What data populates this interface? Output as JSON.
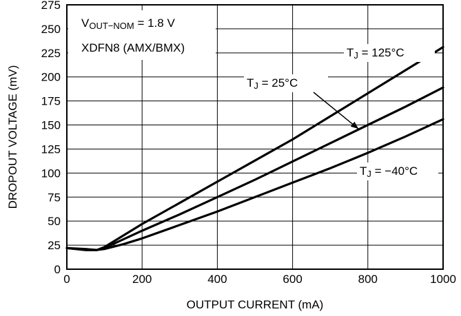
{
  "chart_data": {
    "type": "line",
    "title": "",
    "xlabel": "OUTPUT CURRENT (mA)",
    "ylabel": "DROPOUT VOLTAGE (mV)",
    "xlim": [
      0,
      1000
    ],
    "ylim": [
      0,
      275
    ],
    "grid": true,
    "x_ticks": [
      0,
      200,
      400,
      600,
      800,
      1000
    ],
    "y_ticks": [
      0,
      25,
      50,
      75,
      100,
      125,
      150,
      175,
      200,
      225,
      250,
      275
    ],
    "condition_box": {
      "line1_main": "V",
      "line1_sub": "OUT−NOM",
      "line1_rest": " = 1.8 V",
      "line2": "XDFN8 (AMX/BMX)"
    },
    "series": [
      {
        "label_main": "T",
        "label_sub": "J",
        "label_rest": " = 125°C",
        "x": [
          0,
          50,
          80,
          100,
          150,
          200,
          300,
          400,
          500,
          600,
          700,
          800,
          900,
          1000
        ],
        "y": [
          22,
          20,
          20,
          23,
          35,
          47,
          69,
          91,
          113,
          135,
          159,
          183,
          207,
          231
        ]
      },
      {
        "label_main": "T",
        "label_sub": "J",
        "label_rest": " = 25°C",
        "x": [
          0,
          50,
          80,
          100,
          150,
          200,
          300,
          400,
          500,
          600,
          700,
          800,
          900,
          1000
        ],
        "y": [
          22,
          20,
          20,
          22,
          31,
          40,
          57,
          75,
          93,
          112,
          131,
          150,
          169,
          189
        ]
      },
      {
        "label_main": "T",
        "label_sub": "J",
        "label_rest": " = −40°C",
        "x": [
          0,
          50,
          80,
          100,
          150,
          200,
          300,
          400,
          500,
          600,
          700,
          800,
          900,
          1000
        ],
        "y": [
          22,
          21,
          20,
          21,
          26,
          32,
          46,
          60,
          75,
          90,
          105,
          121,
          138,
          156
        ]
      }
    ]
  }
}
